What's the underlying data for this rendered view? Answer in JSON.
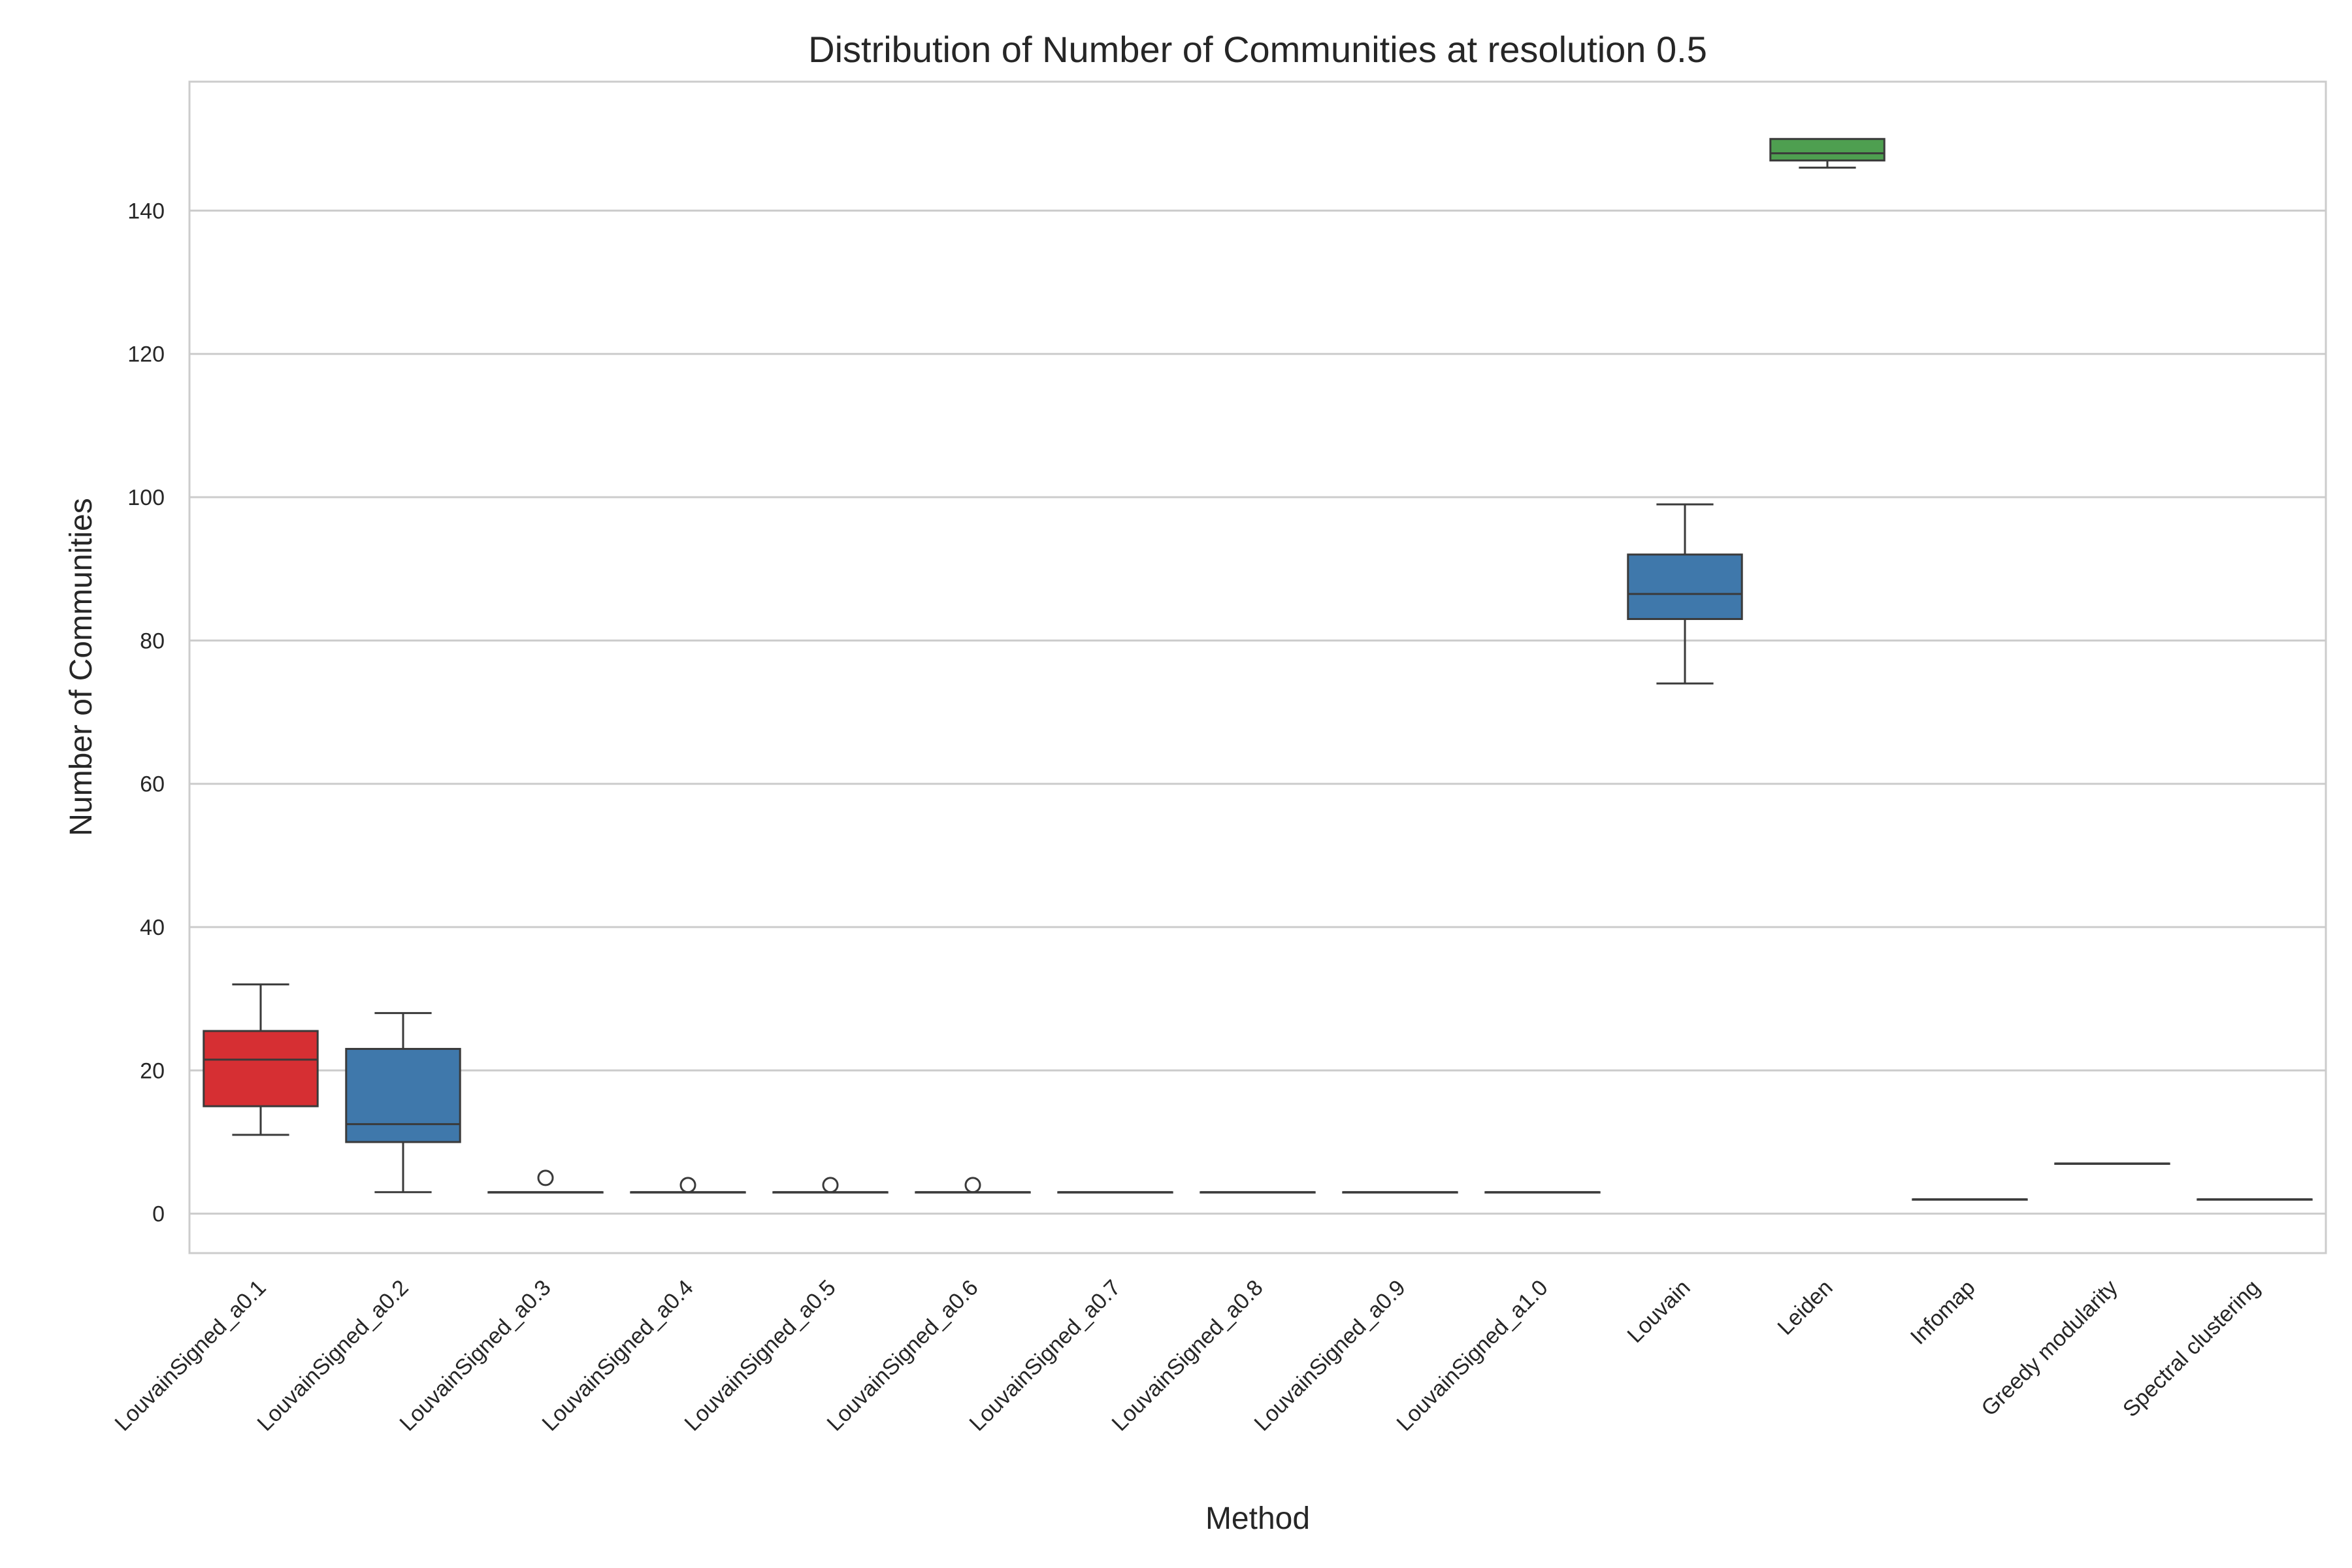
{
  "chart_data": {
    "type": "box",
    "title": "Distribution of Number of Communities at resolution 0.5",
    "xlabel": "Method",
    "ylabel": "Number of Communities",
    "ylim": [
      -5.5,
      158
    ],
    "yticks": [
      0,
      20,
      40,
      60,
      80,
      100,
      120,
      140
    ],
    "grid": true,
    "categories": [
      "LouvainSigned_a0.1",
      "LouvainSigned_a0.2",
      "LouvainSigned_a0.3",
      "LouvainSigned_a0.4",
      "LouvainSigned_a0.5",
      "LouvainSigned_a0.6",
      "LouvainSigned_a0.7",
      "LouvainSigned_a0.8",
      "LouvainSigned_a0.9",
      "LouvainSigned_a1.0",
      "Louvain",
      "Leiden",
      "Infomap",
      "Greedy modularity",
      "Spectral clustering"
    ],
    "boxes": [
      {
        "whisker_low": 11,
        "q1": 15,
        "median": 21.5,
        "q3": 25.5,
        "whisker_high": 32,
        "outliers": [],
        "color": "#d62f33"
      },
      {
        "whisker_low": 3,
        "q1": 10,
        "median": 12.5,
        "q3": 23,
        "whisker_high": 28,
        "outliers": [],
        "color": "#3f78ab"
      },
      {
        "whisker_low": 3,
        "q1": 3,
        "median": 3,
        "q3": 3,
        "whisker_high": 3,
        "outliers": [
          5
        ],
        "color": "#3f78ab"
      },
      {
        "whisker_low": 3,
        "q1": 3,
        "median": 3,
        "q3": 3,
        "whisker_high": 3,
        "outliers": [
          4
        ],
        "color": "#3f78ab"
      },
      {
        "whisker_low": 3,
        "q1": 3,
        "median": 3,
        "q3": 3,
        "whisker_high": 3,
        "outliers": [
          4
        ],
        "color": "#3f78ab"
      },
      {
        "whisker_low": 3,
        "q1": 3,
        "median": 3,
        "q3": 3,
        "whisker_high": 3,
        "outliers": [
          4
        ],
        "color": "#3f78ab"
      },
      {
        "whisker_low": 3,
        "q1": 3,
        "median": 3,
        "q3": 3,
        "whisker_high": 3,
        "outliers": [],
        "color": "#3f78ab"
      },
      {
        "whisker_low": 3,
        "q1": 3,
        "median": 3,
        "q3": 3,
        "whisker_high": 3,
        "outliers": [],
        "color": "#3f78ab"
      },
      {
        "whisker_low": 3,
        "q1": 3,
        "median": 3,
        "q3": 3,
        "whisker_high": 3,
        "outliers": [],
        "color": "#3f78ab"
      },
      {
        "whisker_low": 3,
        "q1": 3,
        "median": 3,
        "q3": 3,
        "whisker_high": 3,
        "outliers": [],
        "color": "#3f78ab"
      },
      {
        "whisker_low": 74,
        "q1": 83,
        "median": 86.5,
        "q3": 92,
        "whisker_high": 99,
        "outliers": [],
        "color": "#3f78ab"
      },
      {
        "whisker_low": 146,
        "q1": 147,
        "median": 148,
        "q3": 150,
        "whisker_high": 150,
        "outliers": [],
        "color": "#4e9f50"
      },
      {
        "whisker_low": 2,
        "q1": 2,
        "median": 2,
        "q3": 2,
        "whisker_high": 2,
        "outliers": [],
        "color": "#3f78ab"
      },
      {
        "whisker_low": 7,
        "q1": 7,
        "median": 7,
        "q3": 7,
        "whisker_high": 7,
        "outliers": [],
        "color": "#3f78ab"
      },
      {
        "whisker_low": 2,
        "q1": 2,
        "median": 2,
        "q3": 2,
        "whisker_high": 2,
        "outliers": [],
        "color": "#3f78ab"
      }
    ]
  }
}
